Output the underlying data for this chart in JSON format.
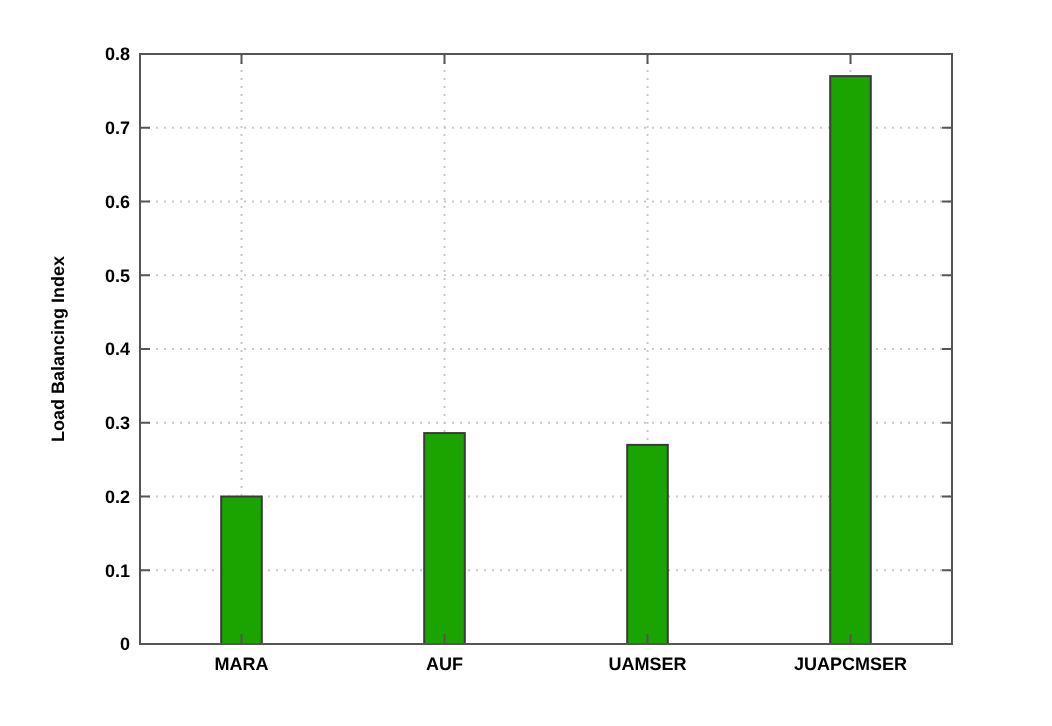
{
  "chart_data": {
    "type": "bar",
    "ylabel": "Load Balancing Index",
    "categories": [
      "MARA",
      "AUF",
      "UAMSER",
      "JUAPCMSER"
    ],
    "values": [
      0.2,
      0.286,
      0.27,
      0.77
    ],
    "color": "#1ba300",
    "ylim": [
      0,
      0.8
    ],
    "yticks": [
      0,
      0.1,
      0.2,
      0.3,
      0.4,
      0.5,
      0.6,
      0.7,
      0.8
    ],
    "grid": true
  }
}
